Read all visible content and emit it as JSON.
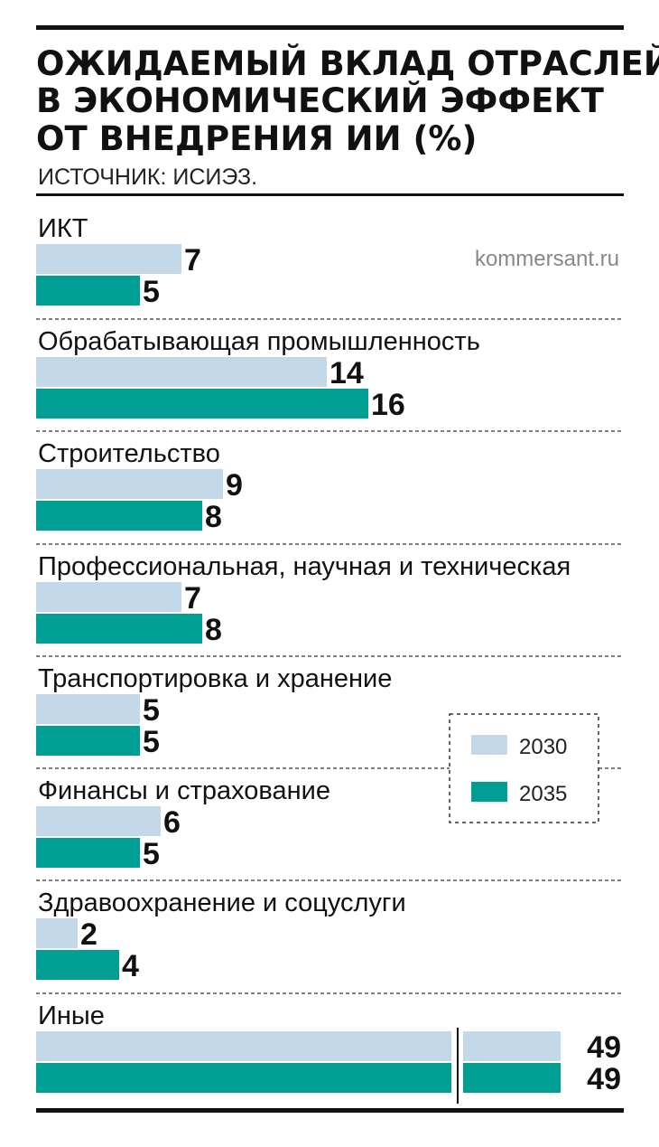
{
  "title_lines": [
    "ОЖИДАЕМЫЙ ВКЛАД ОТРАСЛЕЙ",
    "В ЭКОНОМИЧЕСКИЙ ЭФФЕКТ",
    "ОТ ВНЕДРЕНИЯ ИИ (%)"
  ],
  "source": "ИСТОЧНИК: ИСИЭЗ.",
  "watermark": "kommersant.ru",
  "colors": {
    "s2030": "#c3d8e8",
    "s2035": "#019e93",
    "rule": "#111111",
    "divider": "#333333"
  },
  "chart_data": {
    "type": "bar",
    "orientation": "horizontal",
    "categories": [
      "ИКТ",
      "Обрабатывающая промышленность",
      "Строительство",
      "Профессиональная, научная и техническая",
      "Транспортировка и хранение",
      "Финансы и страхование",
      "Здравоохранение и соцуслуги",
      "Иные"
    ],
    "series": [
      {
        "name": "2030",
        "values": [
          7,
          14,
          9,
          7,
          5,
          6,
          2,
          49
        ]
      },
      {
        "name": "2035",
        "values": [
          5,
          16,
          8,
          8,
          5,
          5,
          4,
          49
        ]
      }
    ],
    "axis_break": true,
    "legend_position": "right-middle"
  }
}
